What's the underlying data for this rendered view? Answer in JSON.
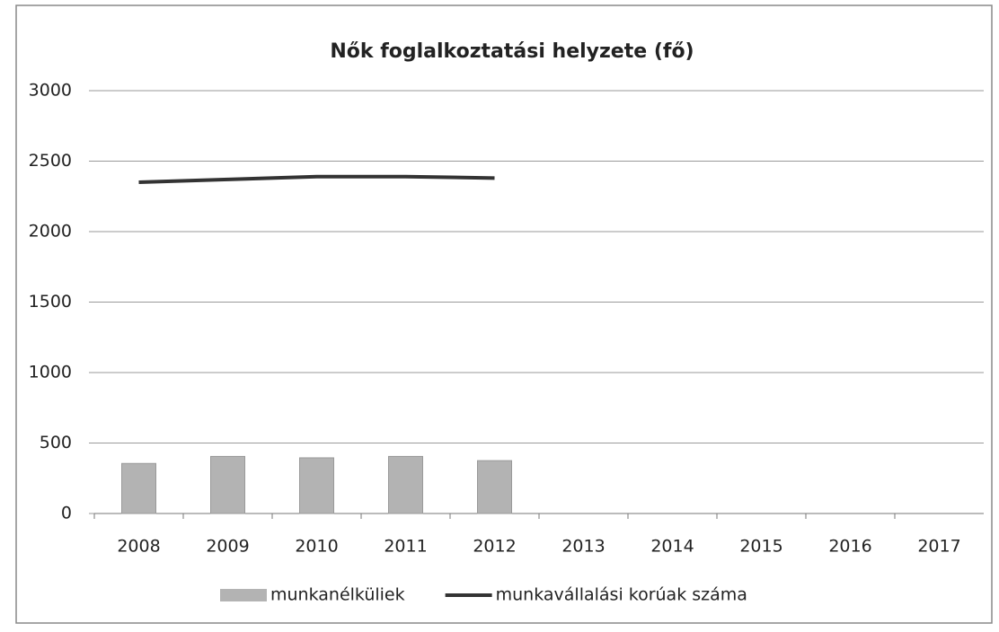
{
  "chart_data": {
    "type": "combo",
    "title": "Nők foglalkoztatási helyzete (fő)",
    "categories": [
      "2008",
      "2009",
      "2010",
      "2011",
      "2012",
      "2013",
      "2014",
      "2015",
      "2016",
      "2017"
    ],
    "series": [
      {
        "name": "munkanélküliek",
        "type": "bar",
        "color": "#b3b3b3",
        "values": [
          355,
          405,
          395,
          405,
          375,
          null,
          null,
          null,
          null,
          null
        ]
      },
      {
        "name": "munkavállalási korúak száma",
        "type": "line",
        "color": "#333333",
        "values": [
          2350,
          2370,
          2390,
          2390,
          2380,
          null,
          null,
          null,
          null,
          null
        ]
      }
    ],
    "ylim": [
      0,
      3000
    ],
    "yticks": [
      0,
      500,
      1000,
      1500,
      2000,
      2500,
      3000
    ],
    "grid": true,
    "legend": "bottom"
  }
}
